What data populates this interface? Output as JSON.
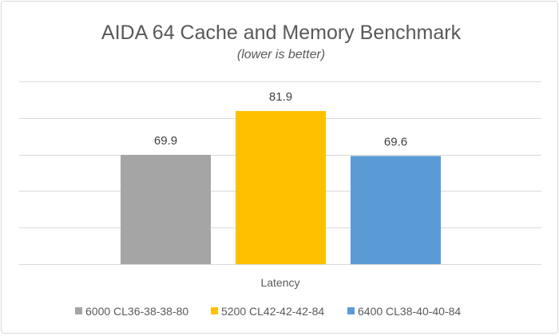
{
  "chart_data": {
    "type": "bar",
    "title": "AIDA 64 Cache and Memory Benchmark",
    "subtitle": "(lower is better)",
    "categories": [
      "Latency"
    ],
    "series": [
      {
        "name": "6000 CL36-38-38-80",
        "values": [
          69.9
        ],
        "color": "#a5a5a5"
      },
      {
        "name": "5200 CL42-42-42-84",
        "values": [
          81.9
        ],
        "color": "#ffc000"
      },
      {
        "name": "6400 CL38-40-40-84",
        "values": [
          69.6
        ],
        "color": "#5b9bd5"
      }
    ],
    "ylim": [
      40,
      90
    ],
    "yticks_hidden": true,
    "grid": true,
    "legend_position": "bottom"
  }
}
